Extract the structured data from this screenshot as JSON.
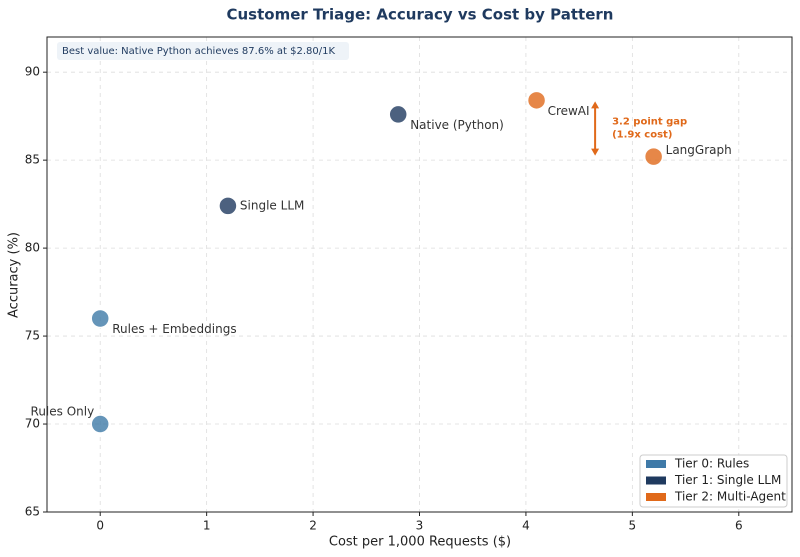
{
  "chart_data": {
    "type": "scatter",
    "title": "Customer Triage: Accuracy vs Cost by Pattern",
    "x_label": "Cost per 1,000 Requests ($)",
    "y_label": "Accuracy (%)",
    "xlim": [
      -0.5,
      6.5
    ],
    "xticks": [
      0,
      1,
      2,
      3,
      4,
      5,
      6
    ],
    "ylim": [
      65,
      92
    ],
    "yticks": [
      65,
      70,
      75,
      80,
      85,
      90
    ],
    "grid": true,
    "legend": "lower right",
    "series": [
      {
        "name": "Tier 0: Rules",
        "color": "#3f7aa8",
        "x": [
          0,
          0
        ],
        "values": [
          70,
          76
        ],
        "labels": [
          "Rules Only",
          "Rules + Embeddings"
        ]
      },
      {
        "name": "Tier 1: Single LLM",
        "color": "#1f3a5f",
        "x": [
          1.2,
          2.8
        ],
        "values": [
          82.4,
          87.6
        ],
        "labels": [
          "Single LLM",
          "Native (Python)"
        ]
      },
      {
        "name": "Tier 2: Multi-Agent",
        "color": "#e0691a",
        "x": [
          4.1,
          5.2
        ],
        "values": [
          88.4,
          85.2
        ],
        "labels": [
          "CrewAI",
          "LangGraph"
        ]
      }
    ],
    "annotations": {
      "best_value": "Best value: Native Python achieves 87.6% at $2.80/1K",
      "gap_line1": "3.2 point gap",
      "gap_line2": "(1.9x cost)"
    }
  }
}
